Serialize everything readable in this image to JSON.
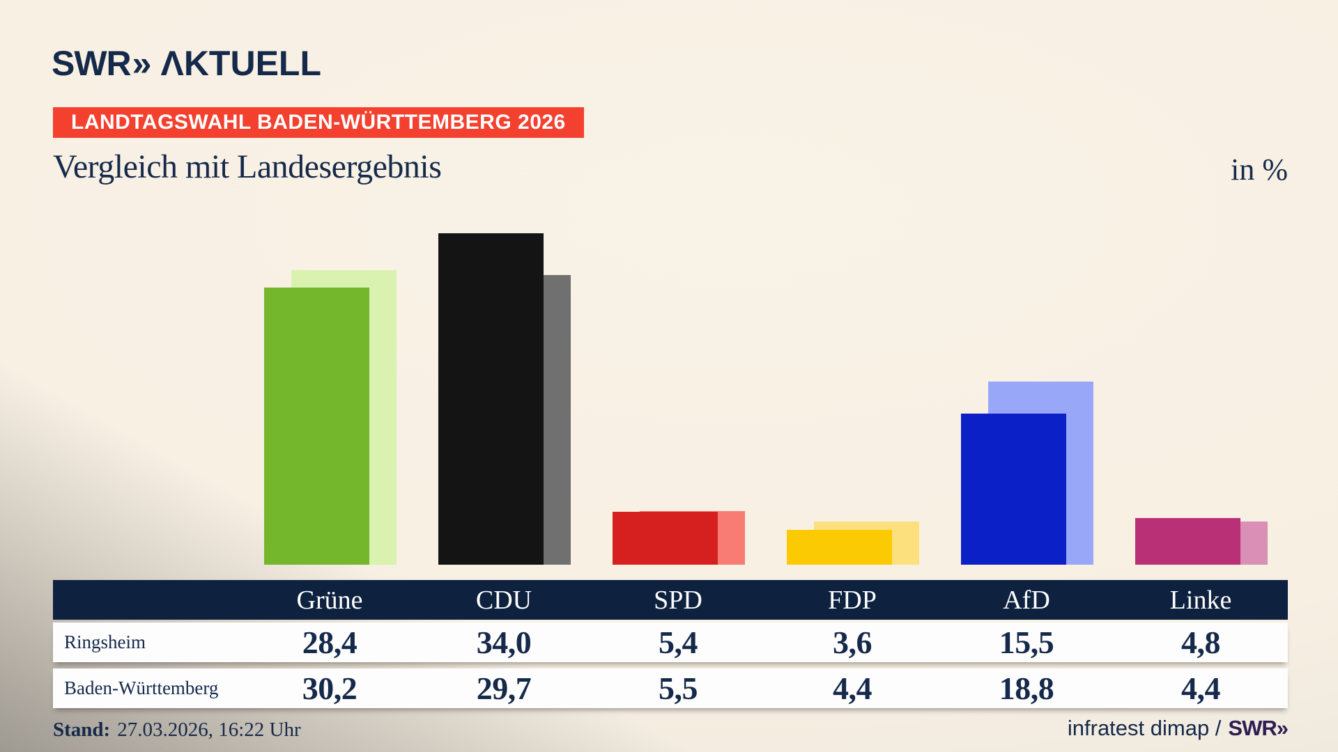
{
  "brand": {
    "logo_swr": "SWR",
    "logo_chevrons": "»",
    "logo_suffix": "ΛKTUELL"
  },
  "badge": {
    "label": "LANDTAGSWAHL BADEN-WÜRTTEMBERG 2026"
  },
  "chart_data": {
    "type": "bar",
    "title": "Vergleich mit Landesergebnis",
    "unit": "in %",
    "categories": [
      "Grüne",
      "CDU",
      "SPD",
      "FDP",
      "AfD",
      "Linke"
    ],
    "series": [
      {
        "name": "Ringsheim",
        "values": [
          28.4,
          34.0,
          5.4,
          3.6,
          15.5,
          4.8
        ]
      },
      {
        "name": "Baden-Württemberg",
        "values": [
          30.2,
          29.7,
          5.5,
          4.4,
          18.8,
          4.4
        ]
      }
    ],
    "colors": {
      "ringsheim": [
        "#74b62c",
        "#141414",
        "#d6201f",
        "#fbca02",
        "#0c20c8",
        "#b93077"
      ],
      "baden_wuerttemberg": [
        "#d9f2b0",
        "#707070",
        "#f87c73",
        "#fce07e",
        "#98a7f8",
        "#da8fb7"
      ]
    },
    "ylim": [
      0,
      40
    ],
    "grid": false,
    "legend_position": "table-below"
  },
  "table": {
    "row_labels": [
      "Ringsheim",
      "Baden-Württemberg"
    ],
    "values_display": [
      [
        "28,4",
        "34,0",
        "5,4",
        "3,6",
        "15,5",
        "4,8"
      ],
      [
        "30,2",
        "29,7",
        "5,5",
        "4,4",
        "18,8",
        "4,4"
      ]
    ]
  },
  "footer": {
    "stand_label": "Stand:",
    "stand_value": "27.03.2026, 16:22 Uhr",
    "source": "infratest dimap /",
    "source_logo": "SWR»"
  }
}
